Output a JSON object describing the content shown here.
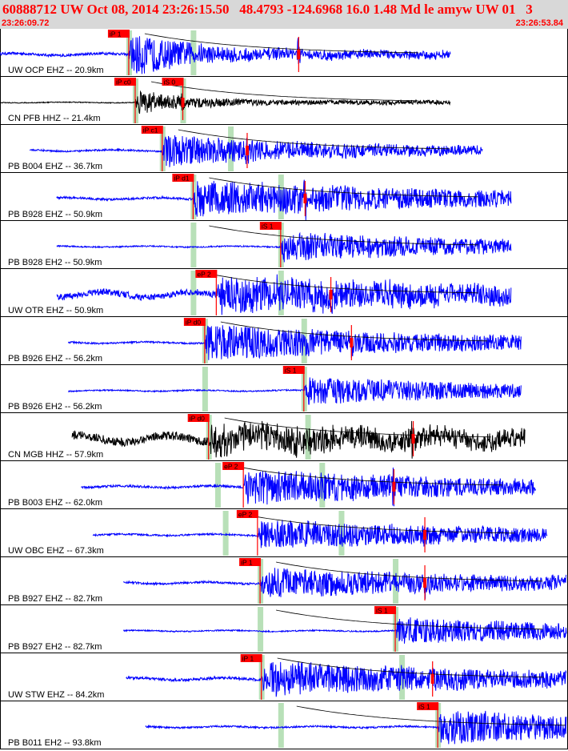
{
  "header": {
    "title": "60888712 UW Oct 08, 2014 23:26:15.50   48.4793 -124.6968 16.0 1.48 Md le amyw UW 01   3",
    "time_start": "23:26:09.72",
    "time_end": "23:26:53.84"
  },
  "chart_data": {
    "type": "line",
    "xlim": [
      0,
      44.12
    ],
    "colors": {
      "blue": "#0000ff",
      "black": "#000000",
      "pick": "#ff0000",
      "window": "#b8e0b8"
    },
    "traces": [
      {
        "label": "UW OCP EHZ -- 20.9km",
        "color": "blue",
        "start": 0,
        "end": 35.0,
        "onset": 10.0,
        "amp": 0.9,
        "noise": 0.06,
        "decay": 5,
        "pick": {
          "label": "iP 1",
          "t": 10.0
        },
        "pick2": {
          "label": "",
          "t": 23.2
        },
        "windows": [
          10.0,
          15.0
        ]
      },
      {
        "label": "CN PFB HHZ -- 21.4km",
        "color": "black",
        "start": 0,
        "end": 35.0,
        "onset": 10.5,
        "amp": 0.5,
        "noise": 0.02,
        "decay": 4,
        "pick": {
          "label": "iP c0",
          "t": 10.5
        },
        "pick2": {
          "label": "iS 0",
          "t": 14.2
        },
        "windows": [
          10.5,
          14.2
        ]
      },
      {
        "label": "PB B004 EHZ -- 36.7km",
        "color": "blue",
        "start": 2.3,
        "end": 37.5,
        "onset": 12.6,
        "amp": 0.65,
        "noise": 0.04,
        "decay": 12,
        "pick": {
          "label": "iP c1",
          "t": 12.6
        },
        "pick2": {
          "label": "",
          "t": 19.2
        },
        "windows": [
          12.6,
          17.9
        ]
      },
      {
        "label": "PB B928 EHZ -- 50.9km",
        "color": "blue",
        "start": 4.4,
        "end": 39.7,
        "onset": 15.0,
        "amp": 0.75,
        "noise": 0.05,
        "decay": 20,
        "pick": {
          "label": "iP d1",
          "t": 15.0
        },
        "pick2": {
          "label": "",
          "t": 23.7
        },
        "windows": [
          15.0,
          21.8
        ]
      },
      {
        "label": "PB B928 EH2 -- 50.9km",
        "color": "blue",
        "start": 4.4,
        "end": 39.7,
        "onset": 21.8,
        "amp": 0.6,
        "noise": 0.03,
        "decay": 18,
        "pick": {
          "label": "iS 1",
          "t": 21.8
        },
        "pick2": null,
        "windows": [
          15.0,
          21.8
        ]
      },
      {
        "label": "UW OTR EHZ -- 50.9km",
        "color": "blue",
        "start": 4.4,
        "end": 39.7,
        "onset": 16.8,
        "amp": 0.75,
        "noise": 0.15,
        "decay": 22,
        "pick": {
          "label": "eP 2",
          "t": 16.8
        },
        "pick2": {
          "label": "",
          "t": 25.7
        },
        "windows": [
          15.0,
          21.8
        ]
      },
      {
        "label": "PB B926 EHZ -- 56.2km",
        "color": "blue",
        "start": 5.3,
        "end": 40.5,
        "onset": 15.9,
        "amp": 0.7,
        "noise": 0.04,
        "decay": 20,
        "pick": {
          "label": "iP d0",
          "t": 15.9
        },
        "pick2": {
          "label": "",
          "t": 27.3
        },
        "windows": [
          15.9,
          23.6
        ]
      },
      {
        "label": "PB B926 EH2 -- 56.2km",
        "color": "blue",
        "start": 5.3,
        "end": 40.5,
        "onset": 23.6,
        "amp": 0.55,
        "noise": 0.03,
        "decay": 18,
        "pick": {
          "label": "iS 1",
          "t": 23.6
        },
        "pick2": null,
        "windows": [
          15.9,
          23.6
        ]
      },
      {
        "label": "CN MGB HHZ -- 57.9km",
        "color": "black",
        "start": 5.6,
        "end": 40.8,
        "onset": 16.2,
        "amp": 0.6,
        "noise": 0.2,
        "decay": 22,
        "pick": {
          "label": "iP d0",
          "t": 16.2
        },
        "pick2": {
          "label": "",
          "t": 32.1
        },
        "windows": [
          16.2,
          23.9
        ]
      },
      {
        "label": "PB B003 EHZ -- 62.0km",
        "color": "blue",
        "start": 6.3,
        "end": 41.6,
        "onset": 18.9,
        "amp": 0.7,
        "noise": 0.05,
        "decay": 20,
        "pick": {
          "label": "eP 2",
          "t": 18.9
        },
        "pick2": {
          "label": "",
          "t": 30.6
        },
        "windows": [
          16.9,
          25.0
        ]
      },
      {
        "label": "UW OBC EHZ -- 67.3km",
        "color": "blue",
        "start": 7.2,
        "end": 42.5,
        "onset": 20.0,
        "amp": 0.6,
        "noise": 0.04,
        "decay": 20,
        "pick": {
          "label": "eP 2",
          "t": 20.0
        },
        "pick2": {
          "label": "",
          "t": 33.0
        },
        "windows": [
          17.5,
          26.5
        ]
      },
      {
        "label": "PB B927 EHZ -- 82.7km",
        "color": "blue",
        "start": 9.6,
        "end": 44.8,
        "onset": 20.2,
        "amp": 0.6,
        "noise": 0.05,
        "decay": 22,
        "pick": {
          "label": "iP 1",
          "t": 20.2
        },
        "pick2": {
          "label": "",
          "t": 33.0
        },
        "windows": [
          20.2,
          30.7
        ]
      },
      {
        "label": "PB B927 EH2 -- 82.7km",
        "color": "blue",
        "start": 9.6,
        "end": 44.8,
        "onset": 30.7,
        "amp": 0.55,
        "noise": 0.03,
        "decay": 18,
        "pick": {
          "label": "iS 1",
          "t": 30.7
        },
        "pick2": null,
        "windows": [
          20.2,
          30.7
        ]
      },
      {
        "label": "UW STW EHZ -- 84.2km",
        "color": "blue",
        "start": 9.8,
        "end": 44.9,
        "onset": 20.3,
        "amp": 0.7,
        "noise": 0.06,
        "decay": 22,
        "pick": {
          "label": "iP 1",
          "t": 20.3
        },
        "pick2": {
          "label": "",
          "t": 33.6
        },
        "windows": [
          20.3,
          31.2
        ]
      },
      {
        "label": "PB B011 EH2 -- 93.8km",
        "color": "blue",
        "start": 11.3,
        "end": 46.5,
        "onset": 34.0,
        "amp": 0.7,
        "noise": 0.04,
        "decay": 18,
        "pick": {
          "label": "iS 1",
          "t": 34.0
        },
        "pick2": null,
        "windows": [
          21.8,
          34.0
        ]
      }
    ]
  }
}
